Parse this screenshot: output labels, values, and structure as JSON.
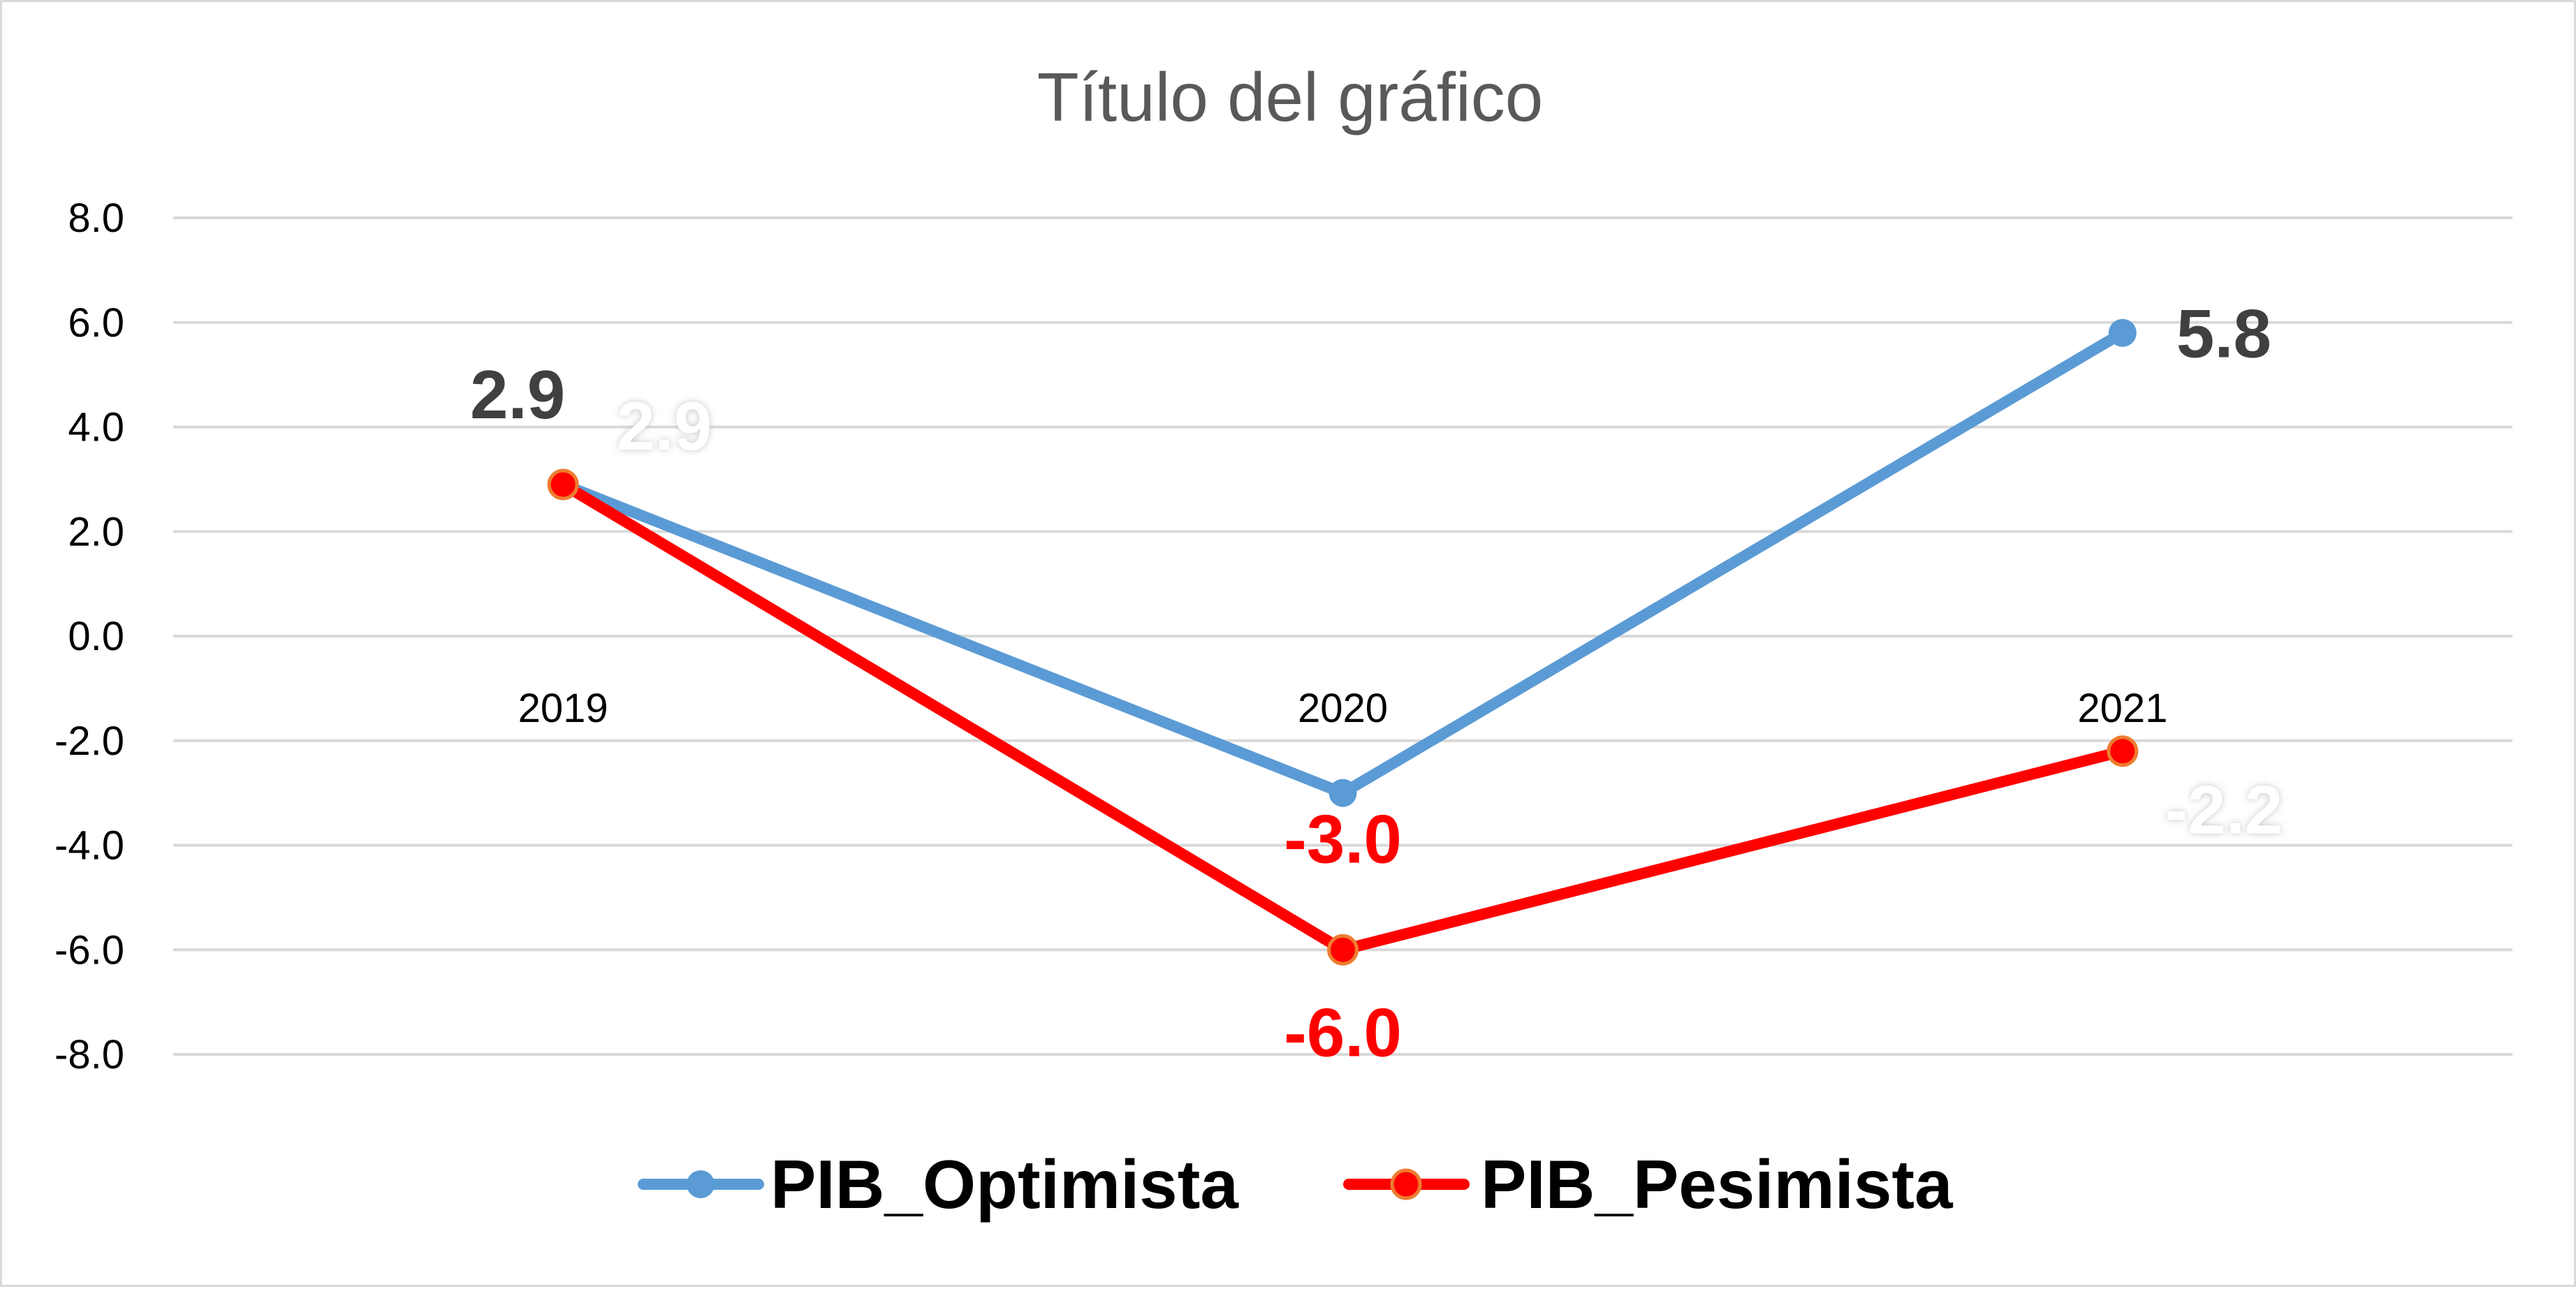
{
  "chart_data": {
    "type": "line",
    "title": "Título del gráfico",
    "categories": [
      "2019",
      "2020",
      "2021"
    ],
    "ylim": [
      -8,
      8
    ],
    "yticks": [
      "8.0",
      "6.0",
      "4.0",
      "2.0",
      "0.0",
      "-2.0",
      "-4.0",
      "-6.0",
      "-8.0"
    ],
    "grid": true,
    "legend_position": "bottom",
    "series": [
      {
        "name": "PIB_Optimista",
        "values": [
          2.9,
          -3.0,
          5.8
        ],
        "labels": [
          "2.9",
          "-3.0",
          "5.8"
        ],
        "label_colors": [
          "#404040",
          "#ff0000",
          "#404040"
        ],
        "color": "#5b9bd5"
      },
      {
        "name": "PIB_Pesimista",
        "values": [
          2.9,
          -6.0,
          -2.2
        ],
        "labels": [
          "2.9",
          "-6.0",
          "-2.2"
        ],
        "label_colors": [
          "#ffffff",
          "#ff0000",
          "#ffffff"
        ],
        "color": "#ff0000",
        "marker_edge": "#ed7d31"
      }
    ]
  }
}
